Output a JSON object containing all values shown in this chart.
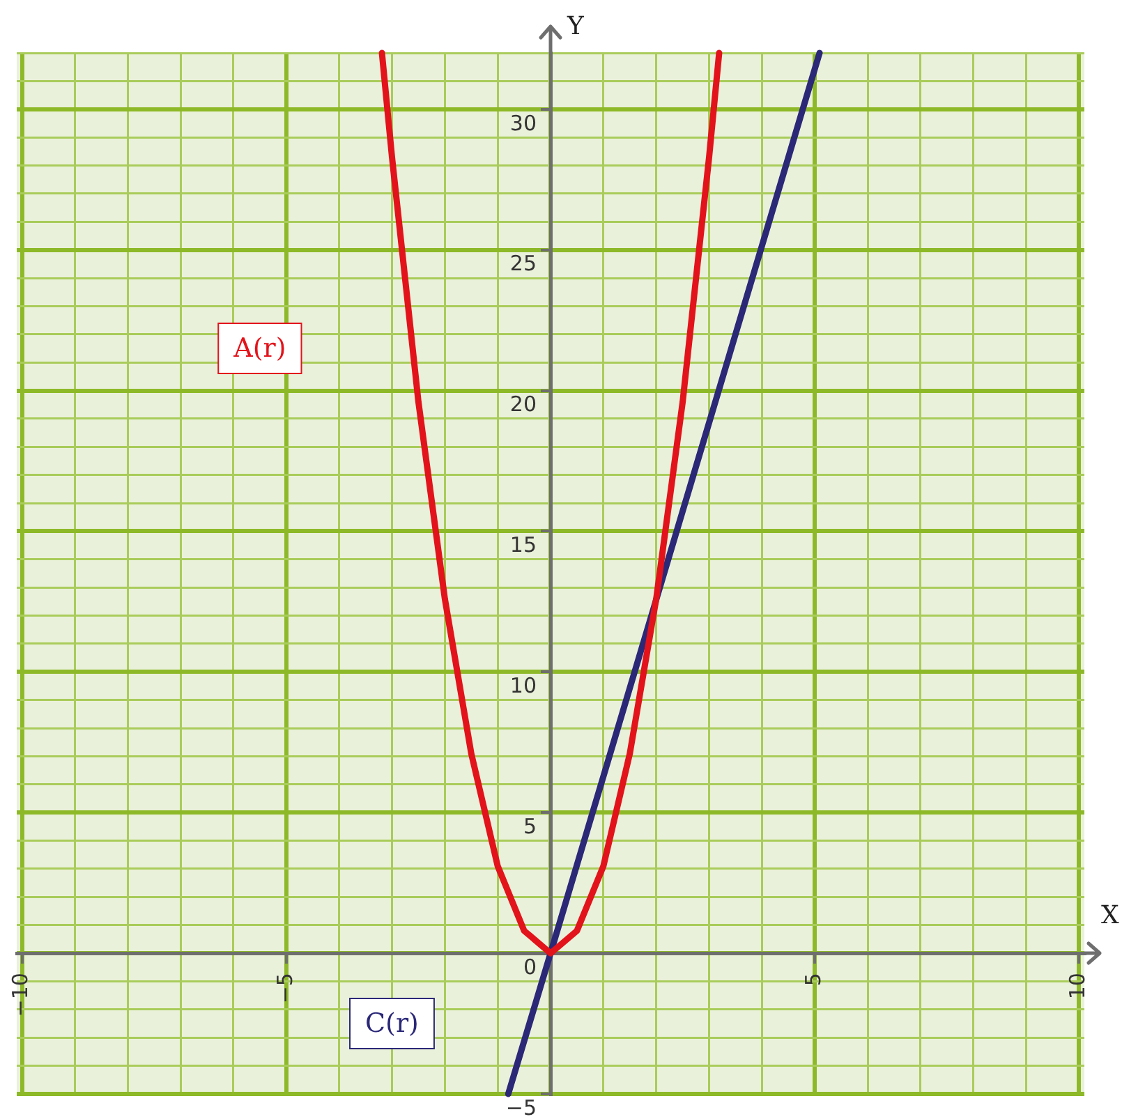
{
  "chart_data": {
    "type": "line",
    "xlabel": "X",
    "ylabel": "Y",
    "xlim": [
      -10.1,
      10.1
    ],
    "ylim": [
      -5,
      32
    ],
    "xticks": [
      {
        "value": -10,
        "label": "−10"
      },
      {
        "value": -9,
        "label": null
      },
      {
        "value": -8,
        "label": null
      },
      {
        "value": -7,
        "label": null
      },
      {
        "value": -6,
        "label": null
      },
      {
        "value": -5,
        "label": "−5"
      },
      {
        "value": -4,
        "label": null
      },
      {
        "value": -3,
        "label": null
      },
      {
        "value": -2,
        "label": null
      },
      {
        "value": -1,
        "label": null
      },
      {
        "value": 0,
        "label": null
      },
      {
        "value": 1,
        "label": null
      },
      {
        "value": 2,
        "label": null
      },
      {
        "value": 3,
        "label": null
      },
      {
        "value": 4,
        "label": null
      },
      {
        "value": 5,
        "label": "5"
      },
      {
        "value": 6,
        "label": null
      },
      {
        "value": 7,
        "label": null
      },
      {
        "value": 8,
        "label": null
      },
      {
        "value": 9,
        "label": null
      },
      {
        "value": 10,
        "label": "10"
      }
    ],
    "yticks": [
      {
        "value": -5,
        "label": "−5"
      },
      {
        "value": -4,
        "label": null
      },
      {
        "value": -3,
        "label": null
      },
      {
        "value": -2,
        "label": null
      },
      {
        "value": -1,
        "label": null
      },
      {
        "value": 0,
        "label": "0"
      },
      {
        "value": 1,
        "label": null
      },
      {
        "value": 2,
        "label": null
      },
      {
        "value": 3,
        "label": null
      },
      {
        "value": 4,
        "label": null
      },
      {
        "value": 5,
        "label": "5"
      },
      {
        "value": 6,
        "label": null
      },
      {
        "value": 7,
        "label": null
      },
      {
        "value": 8,
        "label": null
      },
      {
        "value": 9,
        "label": null
      },
      {
        "value": 10,
        "label": "10"
      },
      {
        "value": 11,
        "label": null
      },
      {
        "value": 12,
        "label": null
      },
      {
        "value": 13,
        "label": null
      },
      {
        "value": 14,
        "label": null
      },
      {
        "value": 15,
        "label": "15"
      },
      {
        "value": 16,
        "label": null
      },
      {
        "value": 17,
        "label": null
      },
      {
        "value": 18,
        "label": null
      },
      {
        "value": 19,
        "label": null
      },
      {
        "value": 20,
        "label": "20"
      },
      {
        "value": 21,
        "label": null
      },
      {
        "value": 22,
        "label": null
      },
      {
        "value": 23,
        "label": null
      },
      {
        "value": 24,
        "label": null
      },
      {
        "value": 25,
        "label": "25"
      },
      {
        "value": 26,
        "label": null
      },
      {
        "value": 27,
        "label": null
      },
      {
        "value": 28,
        "label": null
      },
      {
        "value": 29,
        "label": null
      },
      {
        "value": 30,
        "label": "30"
      },
      {
        "value": 31,
        "label": null
      },
      {
        "value": 32,
        "label": null
      }
    ],
    "grid": true,
    "legend": false,
    "marker": "none",
    "line_style": "solid",
    "series": [
      {
        "name": "A(r)",
        "color": "#e3131b",
        "x": [
          -3.19,
          -3,
          -2.5,
          -2,
          -1.5,
          -1,
          -0.5,
          0,
          0.5,
          1,
          1.5,
          2,
          2.5,
          3,
          3.19
        ],
        "values": [
          32,
          28.3,
          19.6,
          12.6,
          7.1,
          3.1,
          0.8,
          0,
          0.8,
          3.1,
          7.1,
          12.6,
          19.6,
          28.3,
          32
        ]
      },
      {
        "name": "C(r)",
        "color": "#2b2878",
        "x": [
          -0.8,
          0,
          5.09
        ],
        "values": [
          -5,
          0,
          32
        ]
      }
    ]
  }
}
